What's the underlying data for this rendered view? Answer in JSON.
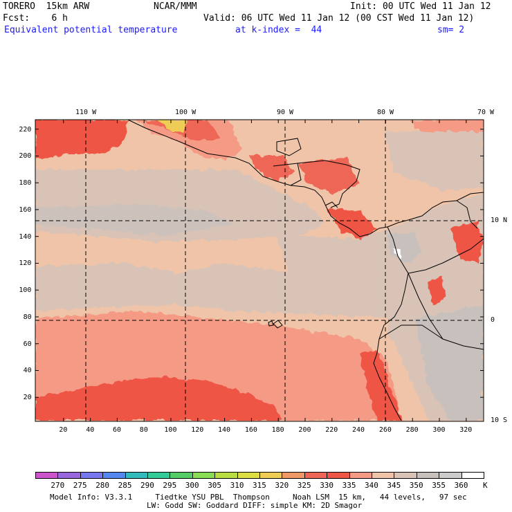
{
  "header": {
    "model": "TORERO  15km ARW",
    "org": "NCAR/MMM",
    "init": "Init: 00 UTC Wed 11 Jan 12",
    "fcst": "Fcst:    6 h",
    "valid": "Valid: 06 UTC Wed 11 Jan 12 (00 CST Wed 11 Jan 12)",
    "field": "Equivalent potential temperature",
    "level": "at k-index =  44",
    "smooth": "sm= 2"
  },
  "map": {
    "lon_labels": [
      "110 W",
      "100 W",
      "90 W",
      "80 W",
      "70 W"
    ],
    "lat_labels": [
      "10 N",
      "0",
      "10 S"
    ],
    "x_ticks": [
      "20",
      "40",
      "60",
      "80",
      "100",
      "120",
      "140",
      "160",
      "180",
      "200",
      "220",
      "240",
      "260",
      "280",
      "300",
      "320"
    ],
    "y_ticks": [
      "220",
      "200",
      "180",
      "160",
      "140",
      "120",
      "100",
      "80",
      "60",
      "40",
      "20"
    ]
  },
  "colorbar": {
    "unit": "K",
    "labels": [
      "270",
      "275",
      "280",
      "285",
      "290",
      "295",
      "300",
      "305",
      "310",
      "315",
      "320",
      "325",
      "330",
      "335",
      "340",
      "345",
      "350",
      "355",
      "360"
    ],
    "colors": [
      "#cc55cc",
      "#9966dd",
      "#7777ee",
      "#5588ee",
      "#33bbbb",
      "#33cc99",
      "#55cc66",
      "#88dd55",
      "#bbdd44",
      "#dddd44",
      "#eecc55",
      "#ee9966",
      "#ee6655",
      "#ee5544",
      "#f59a85",
      "#efc4a8",
      "#d8c3b6",
      "#c8c0bd",
      "#cccccc",
      "#ffffff"
    ]
  },
  "footer": {
    "line1": "Model Info: V3.3.1     Tiedtke YSU PBL  Thompson     Noah LSM  15 km,   44 levels,   97 sec",
    "line2": "LW: Godd SW: Goddard DIFF: simple KM: 2D Smagor"
  }
}
